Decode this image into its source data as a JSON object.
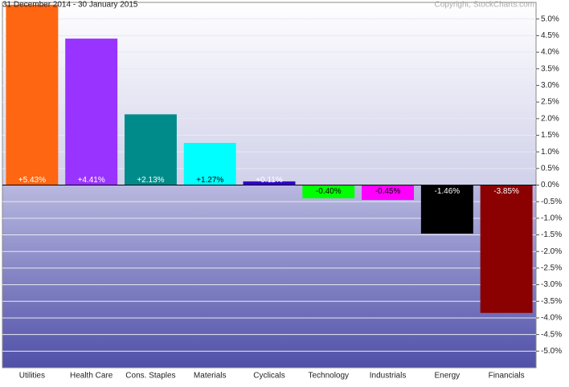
{
  "chart_data": {
    "type": "bar",
    "title": "31 December 2014 - 30 January 2015",
    "credit": "Copyright, StockCharts.com",
    "categories": [
      "Utilities",
      "Health Care",
      "Cons. Staples",
      "Materials",
      "Cyclicals",
      "Technology",
      "Industrials",
      "Energy",
      "Financials"
    ],
    "values": [
      5.43,
      4.41,
      2.13,
      1.27,
      0.11,
      -0.4,
      -0.45,
      -1.46,
      -3.85
    ],
    "value_labels": [
      "+5.43%",
      "+4.41%",
      "+2.13%",
      "+1.27%",
      "+0.11%",
      "-0.40%",
      "-0.45%",
      "-1.46%",
      "-3.85%"
    ],
    "colors": [
      "#ff6611",
      "#9933ff",
      "#008b8b",
      "#00ffff",
      "#3300cc",
      "#00ff00",
      "#ff00ff",
      "#000000",
      "#8b0000"
    ],
    "value_label_colors": [
      "#ffffff",
      "#ffffff",
      "#ffffff",
      "#000000",
      "#ffffff",
      "#000000",
      "#000000",
      "#ffffff",
      "#ffffff"
    ],
    "ylim": [
      -5.5,
      5.5
    ],
    "yticks": [
      {
        "value": 5,
        "label": "5.0%"
      },
      {
        "value": 4.5,
        "label": "4.5%"
      },
      {
        "value": 4,
        "label": "4.0%"
      },
      {
        "value": 3.5,
        "label": "3.5%"
      },
      {
        "value": 3,
        "label": "3.0%"
      },
      {
        "value": 2.5,
        "label": "2.5%"
      },
      {
        "value": 2,
        "label": "2.0%"
      },
      {
        "value": 1.5,
        "label": "1.5%"
      },
      {
        "value": 1,
        "label": "1.0%"
      },
      {
        "value": 0.5,
        "label": "0.5%"
      },
      {
        "value": 0,
        "label": "0.0%"
      },
      {
        "value": -0.5,
        "label": "-0.5%"
      },
      {
        "value": -1,
        "label": "-1.0%"
      },
      {
        "value": -1.5,
        "label": "-1.5%"
      },
      {
        "value": -2,
        "label": "-2.0%"
      },
      {
        "value": -2.5,
        "label": "-2.5%"
      },
      {
        "value": -3,
        "label": "-3.0%"
      },
      {
        "value": -3.5,
        "label": "-3.5%"
      },
      {
        "value": -4,
        "label": "-4.0%"
      },
      {
        "value": -4.5,
        "label": "-4.5%"
      },
      {
        "value": -5,
        "label": "-5.0%"
      }
    ],
    "grid": true
  }
}
